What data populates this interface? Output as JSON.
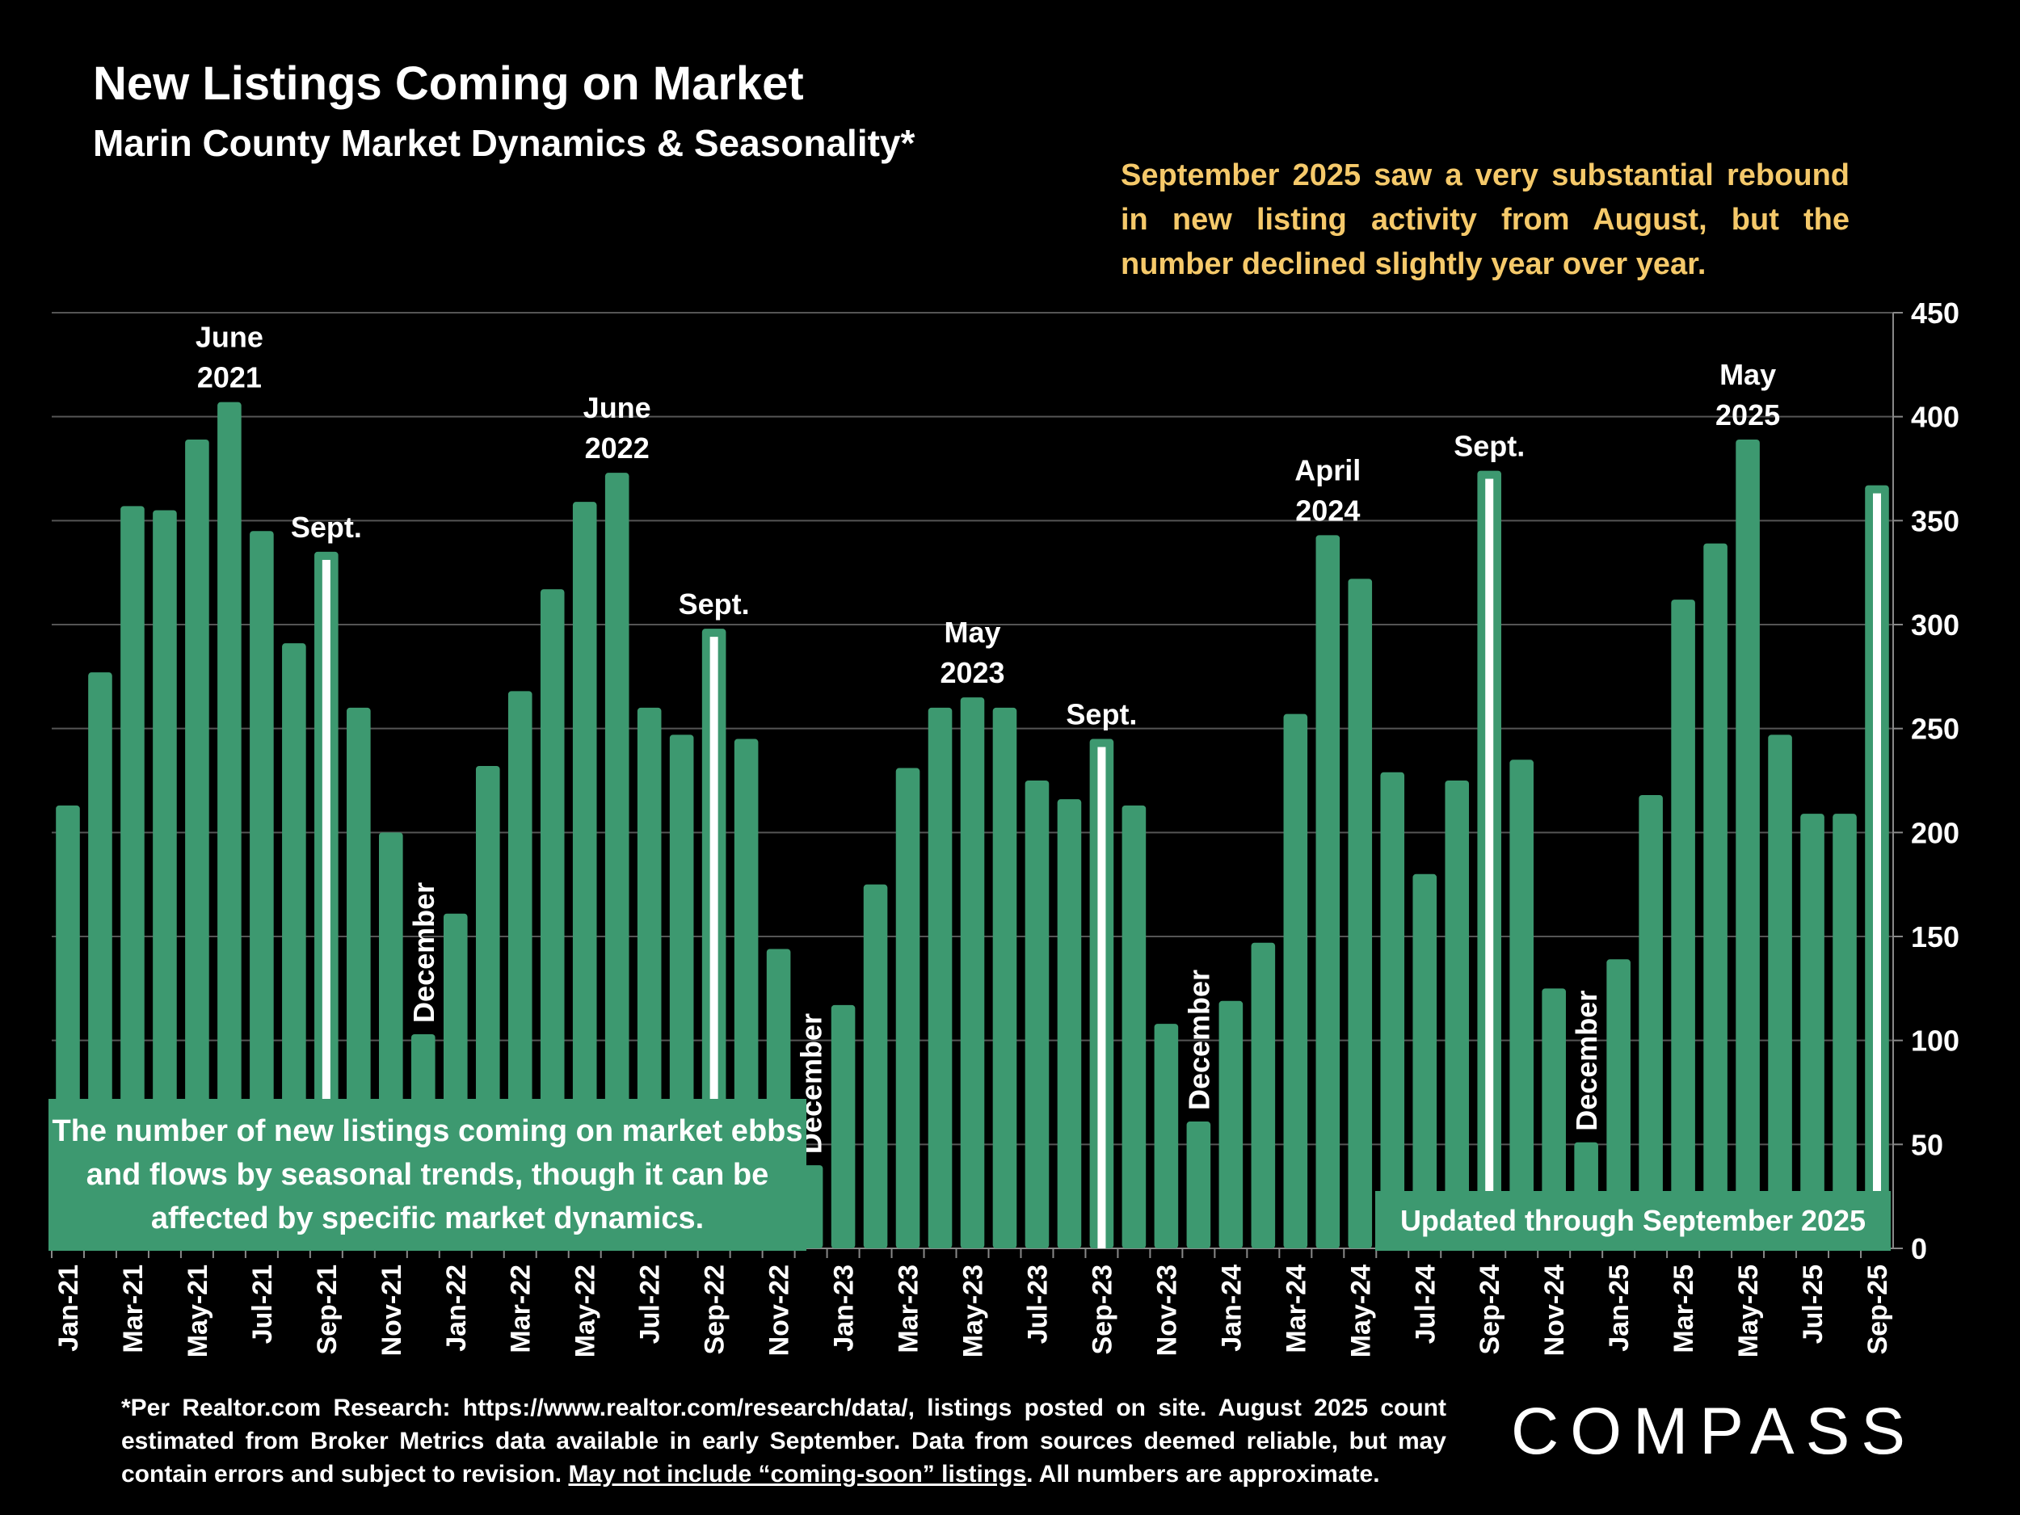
{
  "title": "New Listings Coming on Market",
  "subtitle": "Marin County Market Dynamics & Seasonality*",
  "callout": "September 2025 saw a very substantial rebound in new listing activity from August, but the number declined slightly year over year.",
  "box_left": "The number of new listings coming on market ebbs and flows by seasonal trends, though it can be affected by specific market dynamics.",
  "box_right": "Updated through September 2025",
  "footnote": {
    "part1": "*Per Realtor.com Research:  https://www.realtor.com/research/data/, listings posted on site. August 2025 count estimated from Broker Metrics data available in early September. Data from sources deemed reliable, but may contain errors and subject to revision. ",
    "underlined": "May not include “coming-soon” listings",
    "part2": ". All numbers are approximate."
  },
  "logo": "COMPASS",
  "colors": {
    "bar": "#3d9970",
    "highlight_stripe": "#ffffff",
    "callout_text": "#f5c96a",
    "grid": "#555555"
  },
  "chart_data": {
    "type": "bar",
    "title": "New Listings Coming on Market",
    "ylim": [
      0,
      450
    ],
    "yticks": [
      0,
      50,
      100,
      150,
      200,
      250,
      300,
      350,
      400,
      450
    ],
    "y_axis_position": "right",
    "grid": true,
    "categories": [
      "Jan-21",
      "Feb-21",
      "Mar-21",
      "Apr-21",
      "May-21",
      "Jun-21",
      "Jul-21",
      "Aug-21",
      "Sep-21",
      "Oct-21",
      "Nov-21",
      "Dec-21",
      "Jan-22",
      "Feb-22",
      "Mar-22",
      "Apr-22",
      "May-22",
      "Jun-22",
      "Jul-22",
      "Aug-22",
      "Sep-22",
      "Oct-22",
      "Nov-22",
      "Dec-22",
      "Jan-23",
      "Feb-23",
      "Mar-23",
      "Apr-23",
      "May-23",
      "Jun-23",
      "Jul-23",
      "Aug-23",
      "Sep-23",
      "Oct-23",
      "Nov-23",
      "Dec-23",
      "Jan-24",
      "Feb-24",
      "Mar-24",
      "Apr-24",
      "May-24",
      "Jun-24",
      "Jul-24",
      "Aug-24",
      "Sep-24",
      "Oct-24",
      "Nov-24",
      "Dec-24",
      "Jan-25",
      "Feb-25",
      "Mar-25",
      "Apr-25",
      "May-25",
      "Jun-25",
      "Jul-25",
      "Aug-25",
      "Sep-25"
    ],
    "xtick_labels_shown": [
      "Jan-21",
      "Mar-21",
      "May-21",
      "Jul-21",
      "Sep-21",
      "Nov-21",
      "Jan-22",
      "Mar-22",
      "May-22",
      "Jul-22",
      "Sep-22",
      "Nov-22",
      "Jan-23",
      "Mar-23",
      "May-23",
      "Jul-23",
      "Sep-23",
      "Nov-23",
      "Jan-24",
      "Mar-24",
      "May-24",
      "Jul-24",
      "Sep-24",
      "Nov-24",
      "Jan-25",
      "Mar-25",
      "May-25",
      "Jul-25",
      "Sep-25"
    ],
    "values": [
      213,
      277,
      357,
      355,
      389,
      407,
      345,
      291,
      335,
      260,
      200,
      103,
      161,
      232,
      268,
      317,
      359,
      373,
      260,
      247,
      298,
      245,
      144,
      40,
      117,
      175,
      231,
      260,
      265,
      260,
      225,
      216,
      245,
      213,
      108,
      61,
      119,
      147,
      257,
      343,
      322,
      229,
      180,
      225,
      374,
      235,
      125,
      51,
      139,
      218,
      312,
      339,
      389,
      247,
      209,
      209,
      367
    ],
    "highlighted": [
      "Sep-21",
      "Sep-22",
      "Sep-23",
      "Sep-24",
      "Sep-25"
    ],
    "annotations": [
      {
        "category": "Jun-21",
        "text": [
          "June",
          "2021"
        ]
      },
      {
        "category": "Sep-21",
        "text": [
          "Sept."
        ]
      },
      {
        "category": "Dec-21",
        "text": [
          "December"
        ],
        "rotated": true
      },
      {
        "category": "Jun-22",
        "text": [
          "June",
          "2022"
        ]
      },
      {
        "category": "Sep-22",
        "text": [
          "Sept."
        ]
      },
      {
        "category": "Dec-22",
        "text": [
          "December"
        ],
        "rotated": true
      },
      {
        "category": "May-23",
        "text": [
          "May",
          "2023"
        ]
      },
      {
        "category": "Sep-23",
        "text": [
          "Sept."
        ]
      },
      {
        "category": "Dec-23",
        "text": [
          "December"
        ],
        "rotated": true
      },
      {
        "category": "Apr-24",
        "text": [
          "April",
          "2024"
        ]
      },
      {
        "category": "Sep-24",
        "text": [
          "Sept."
        ]
      },
      {
        "category": "Dec-24",
        "text": [
          "December"
        ],
        "rotated": true
      },
      {
        "category": "May-25",
        "text": [
          "May",
          "2025"
        ]
      }
    ]
  }
}
